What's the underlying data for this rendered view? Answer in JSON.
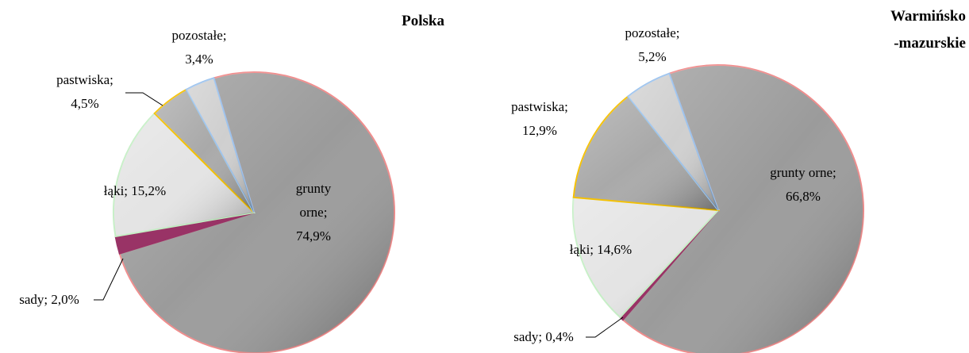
{
  "chart_data": [
    {
      "type": "pie",
      "title": "Polska",
      "values": [
        74.9,
        2.0,
        15.2,
        4.5,
        3.4
      ],
      "value_labels": [
        "grunty\norne;\n74,9%",
        "sady; 2,0%",
        "łąki; 15,2%",
        "pastwiska;\n4,5%",
        "pozostałe;\n3,4%"
      ],
      "colors": [
        "#9b9b9b",
        "#993366",
        "#e4e4e4",
        "#a9a9a9",
        "#cfcfcf"
      ],
      "edge_colors": [
        "#f08c8c",
        "#993366",
        "#c6efc6",
        "#f5c000",
        "#9cc3ee"
      ]
    },
    {
      "type": "pie",
      "title": "Warmińsko\n-mazurskie",
      "values": [
        66.8,
        0.4,
        14.6,
        12.9,
        5.2
      ],
      "value_labels": [
        "grunty orne;\n66,8%",
        "sady; 0,4%",
        "łąki; 14,6%",
        "pastwiska;\n12,9%",
        "pozostałe;\n5,2%"
      ],
      "colors": [
        "#9b9b9b",
        "#993366",
        "#e4e4e4",
        "#a9a9a9",
        "#cfcfcf"
      ],
      "edge_colors": [
        "#f08c8c",
        "#993366",
        "#c6efc6",
        "#f5c000",
        "#9cc3ee"
      ]
    }
  ]
}
